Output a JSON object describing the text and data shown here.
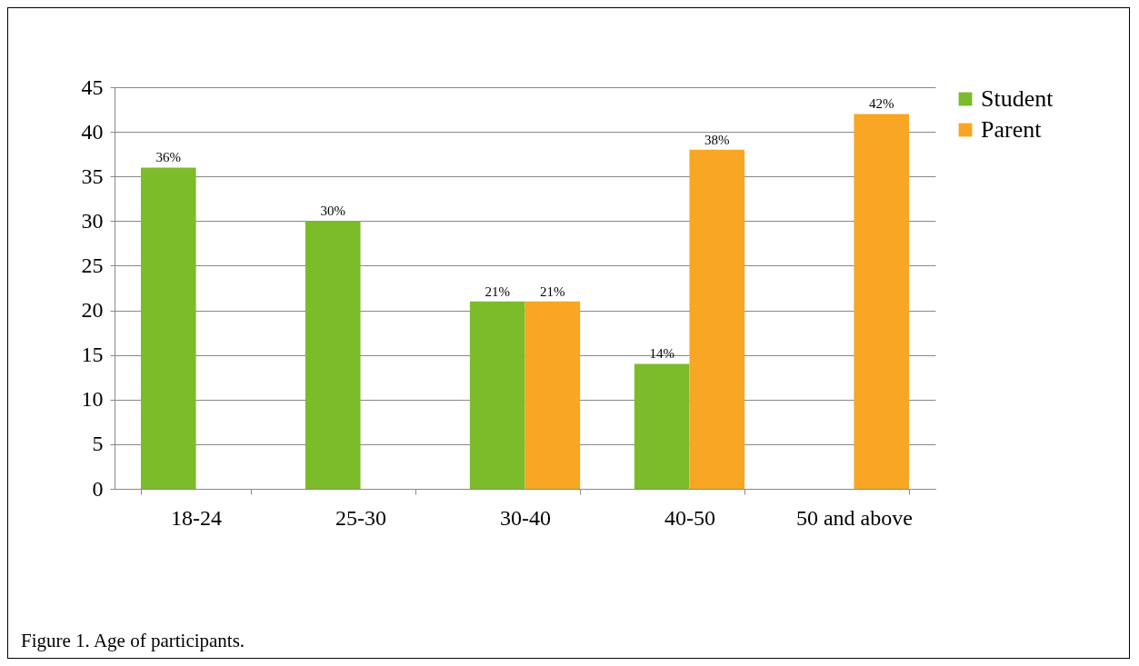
{
  "chart_data": {
    "type": "bar",
    "categories": [
      "18-24",
      "25-30",
      "30-40",
      "40-50",
      "50 and above"
    ],
    "series": [
      {
        "name": "Student",
        "color": "#7cbb2a",
        "values": [
          36,
          30,
          21,
          14,
          null
        ],
        "value_labels": [
          "36%",
          "30%",
          "21%",
          "14%",
          null
        ]
      },
      {
        "name": "Parent",
        "color": "#f8a623",
        "values": [
          null,
          null,
          21,
          38,
          42
        ],
        "value_labels": [
          null,
          null,
          "21%",
          "38%",
          "42%"
        ]
      }
    ],
    "ylim": [
      0,
      45
    ],
    "yticks": [
      0,
      5,
      10,
      15,
      20,
      25,
      30,
      35,
      40,
      45
    ],
    "grid": "y",
    "legend": "right",
    "annotations": [
      "Figure 1. Age of participants."
    ]
  }
}
